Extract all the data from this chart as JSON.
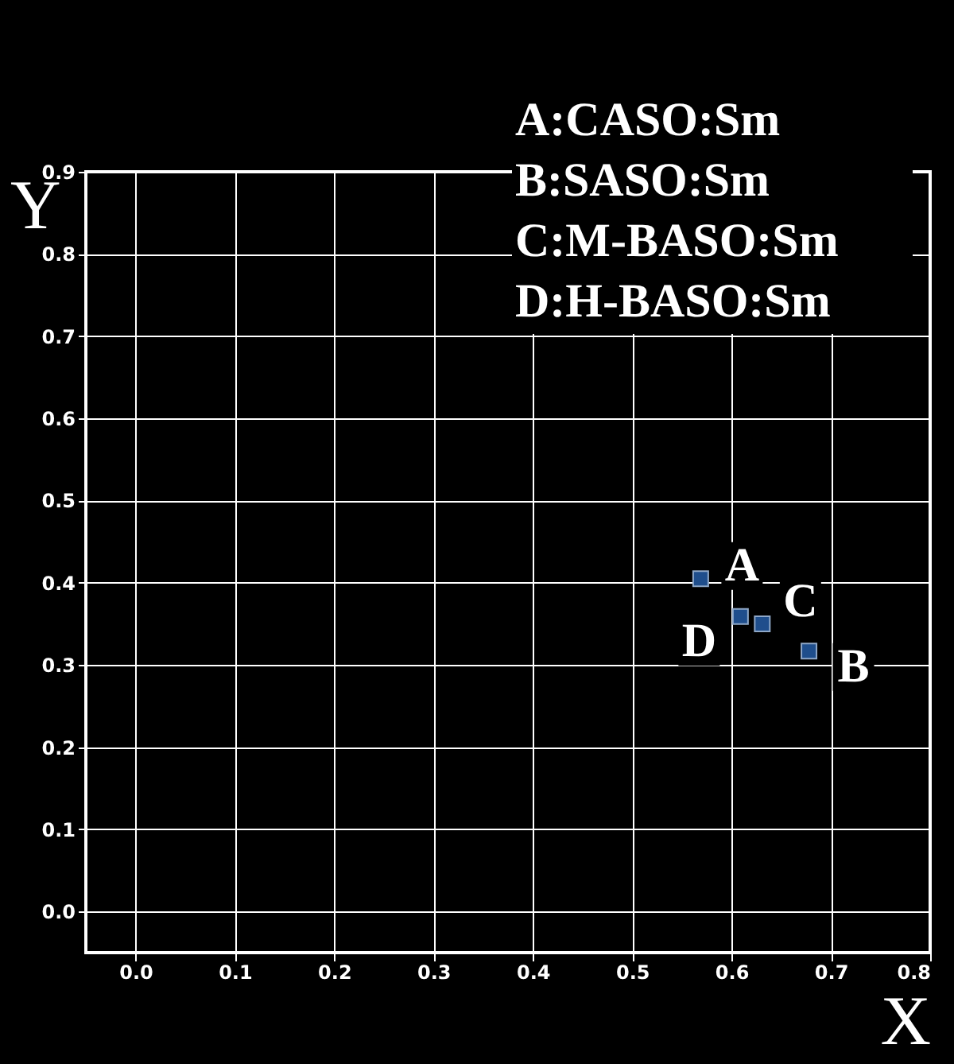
{
  "chart_data": {
    "type": "scatter",
    "xlabel": "X",
    "ylabel": "Y",
    "x": [
      0.569,
      0.678,
      0.631,
      0.609
    ],
    "series": [
      {
        "color": "#1f4e8c",
        "values": [
          0.405,
          0.317,
          0.35,
          0.359
        ]
      }
    ],
    "marker": "square",
    "xlim": [
      -0.05,
      0.8
    ],
    "ylim": [
      -0.05,
      0.9
    ],
    "xticks": [
      {
        "value": 0,
        "label": "0.0"
      },
      0.1,
      0.2,
      0.3,
      0.4,
      0.5,
      0.6,
      0.7,
      0.8
    ],
    "yticks": [
      {
        "value": 0,
        "label": "0.0"
      },
      0.1,
      0.2,
      0.3,
      0.4,
      0.5,
      0.6,
      0.7,
      0.8,
      0.9
    ],
    "grid": true,
    "annotations": [
      {
        "text": "A",
        "x": 0.569,
        "y": 0.405
      },
      {
        "text": "B",
        "x": 0.678,
        "y": 0.317
      },
      {
        "text": "C",
        "x": 0.631,
        "y": 0.35
      },
      {
        "text": "D",
        "x": 0.609,
        "y": 0.359
      },
      "A:CASO:Sm",
      "B:SASO:Sm",
      "C:M-BASO:Sm",
      "D:H-BASO:Sm"
    ]
  }
}
